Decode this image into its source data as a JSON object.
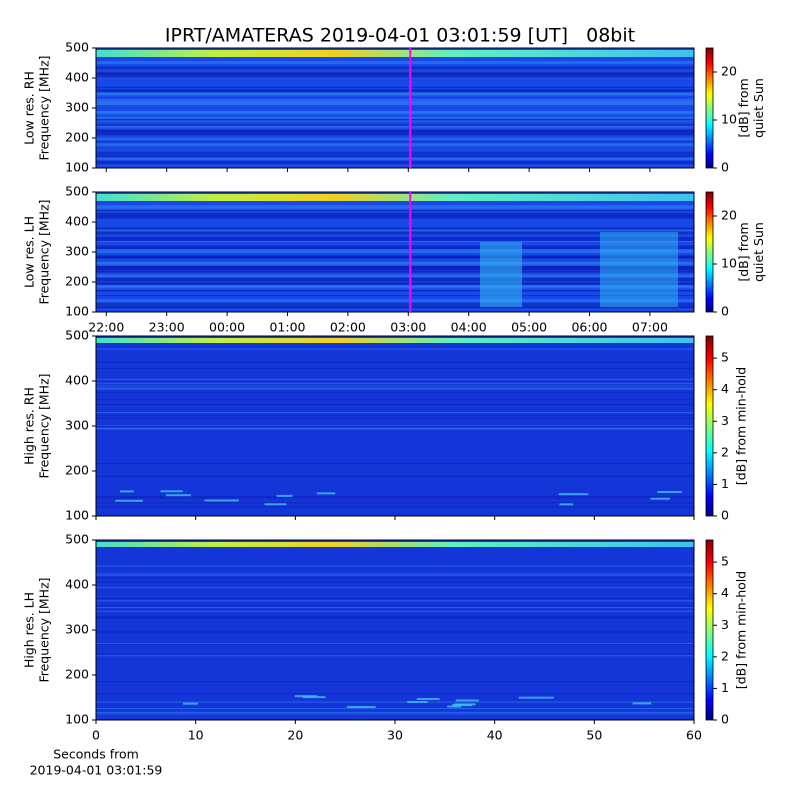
{
  "chart_data": [
    {
      "type": "heatmap",
      "title": "IPRT/AMATERAS 2019-04-01 03:01:59 [UT]   08bit",
      "ylabel": [
        "Low res. RH",
        "Frequency [MHz]"
      ],
      "ylim": [
        100,
        500
      ],
      "yticks": [
        100,
        200,
        300,
        400,
        500
      ],
      "xlim": [
        21.83,
        31.73
      ],
      "marker_x": 27.033,
      "marker_color": "#ff00ff",
      "colorbar_label": [
        "[dB] from",
        "quiet Sun"
      ],
      "clim": [
        0,
        25
      ],
      "cticks": [
        0,
        10,
        20
      ]
    },
    {
      "type": "heatmap",
      "ylabel": [
        "Low res. LH",
        "Frequency [MHz]"
      ],
      "ylim": [
        100,
        500
      ],
      "yticks": [
        100,
        200,
        300,
        400,
        500
      ],
      "xlim": [
        21.83,
        31.73
      ],
      "marker_x": 27.033,
      "marker_color": "#ff00ff",
      "xticks": [
        {
          "value": 22,
          "label": "22:00"
        },
        {
          "value": 23,
          "label": "23:00"
        },
        {
          "value": 24,
          "label": "00:00"
        },
        {
          "value": 25,
          "label": "01:00"
        },
        {
          "value": 26,
          "label": "02:00"
        },
        {
          "value": 27,
          "label": "03:00"
        },
        {
          "value": 28,
          "label": "04:00"
        },
        {
          "value": 29,
          "label": "05:00"
        },
        {
          "value": 30,
          "label": "06:00"
        },
        {
          "value": 31,
          "label": "07:00"
        }
      ],
      "colorbar_label": [
        "[dB] from",
        "quiet Sun"
      ],
      "clim": [
        0,
        25
      ],
      "cticks": [
        0,
        10,
        20
      ]
    },
    {
      "type": "heatmap",
      "ylabel": [
        "High res. RH",
        "Frequency [MHz]"
      ],
      "ylim": [
        100,
        500
      ],
      "yticks": [
        100,
        200,
        300,
        400,
        500
      ],
      "xlim": [
        0,
        60
      ],
      "colorbar_label": [
        "[dB] from min-hold"
      ],
      "clim": [
        0,
        5.7
      ],
      "cticks": [
        0,
        1,
        2,
        3,
        4,
        5
      ]
    },
    {
      "type": "heatmap",
      "ylabel": [
        "High res. LH",
        "Frequency [MHz]"
      ],
      "ylim": [
        100,
        500
      ],
      "yticks": [
        100,
        200,
        300,
        400,
        500
      ],
      "xlim": [
        0,
        60
      ],
      "xticks": [
        0,
        10,
        20,
        30,
        40,
        50,
        60
      ],
      "xlabel": [
        "Seconds from",
        "2019-04-01 03:01:59"
      ],
      "colorbar_label": [
        "[dB] from min-hold"
      ],
      "clim": [
        0,
        5.7
      ],
      "cticks": [
        0,
        1,
        2,
        3,
        4,
        5
      ]
    }
  ]
}
